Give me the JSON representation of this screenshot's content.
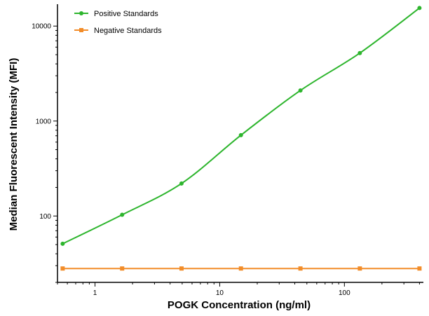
{
  "chart_data": {
    "type": "scatter",
    "title": "",
    "xlabel": "POGK Concentration (ng/ml)",
    "ylabel": "Median Fluorescent Intensity (MFI)",
    "xscale": "log",
    "yscale": "log",
    "xlim": [
      0.5,
      430
    ],
    "ylim": [
      20,
      17000
    ],
    "x_ticks": [
      {
        "value": 1,
        "label": "1"
      },
      {
        "value": 10,
        "label": "10"
      },
      {
        "value": 100,
        "label": "100"
      }
    ],
    "y_ticks": [
      {
        "value": 100,
        "label": "100"
      },
      {
        "value": 1000,
        "label": "1000"
      },
      {
        "value": 10000,
        "label": "10000"
      }
    ],
    "grid": false,
    "legend_position": "top-left",
    "series": [
      {
        "name": "Positive Standards",
        "color": "#2db52d",
        "marker": "circle",
        "x": [
          0.55,
          1.65,
          4.94,
          14.8,
          44.4,
          133,
          400
        ],
        "y": [
          51,
          103,
          220,
          710,
          2100,
          5200,
          15500
        ],
        "fit_curve": true
      },
      {
        "name": "Negative Standards",
        "color": "#f28c28",
        "marker": "square",
        "x": [
          0.55,
          1.65,
          4.94,
          14.8,
          44.4,
          133,
          400
        ],
        "y": [
          28,
          28,
          28,
          28,
          28,
          28,
          28
        ],
        "fit_curve": false
      }
    ]
  }
}
